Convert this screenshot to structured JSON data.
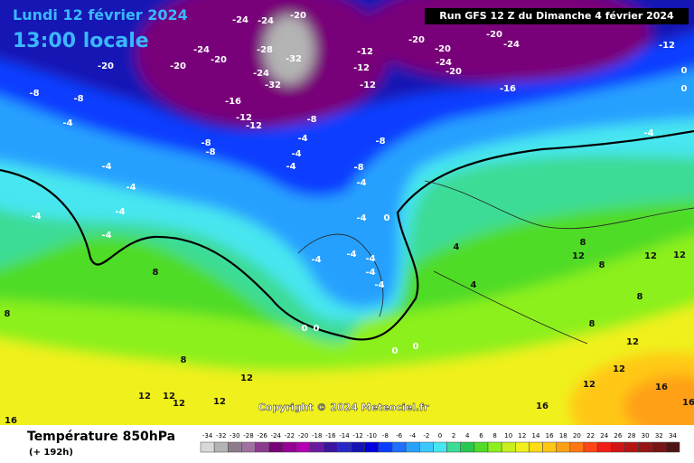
{
  "header": {
    "date": "Lundi 12 février 2024",
    "time": "13:00 locale",
    "run": "Run GFS 12 Z du Dimanche 4 février 2024"
  },
  "map": {
    "copyright": "Copyright © 2024 Meteociel.fr",
    "labels": [
      -24,
      -24,
      -20,
      -20,
      -20,
      -20,
      -24,
      -24,
      -20,
      -16,
      -20,
      -20,
      -20,
      -24,
      -28,
      -32,
      -24,
      -32,
      -12,
      -12,
      -12,
      -16,
      -12,
      -12,
      -8,
      -8,
      -8,
      -8,
      -8,
      -4,
      -4,
      -4,
      -4,
      -8,
      -8,
      -4,
      -4,
      -4,
      -4,
      -4,
      -4,
      8,
      -4,
      -4,
      -4,
      -4,
      -4,
      -4,
      0,
      4,
      4,
      8,
      12,
      8,
      12,
      12,
      8,
      8,
      12,
      12,
      12,
      16,
      16,
      16,
      12,
      12,
      12,
      12,
      12,
      16,
      8,
      8,
      0,
      0,
      0,
      0,
      -12,
      0,
      0,
      -4
    ]
  },
  "legend": {
    "title": "Température 850hPa",
    "lead": "(+ 192h)",
    "scale": [
      -34,
      -32,
      -30,
      -28,
      -26,
      -24,
      -22,
      -20,
      -18,
      -16,
      -14,
      -12,
      -10,
      -8,
      -6,
      -4,
      -2,
      0,
      2,
      4,
      6,
      8,
      10,
      12,
      14,
      16,
      18,
      20,
      22,
      24,
      26,
      28,
      30,
      32,
      34
    ],
    "colors": [
      "#d8d8d8",
      "#b4b4b4",
      "#8c7c8c",
      "#a070a0",
      "#8c3c8c",
      "#780078",
      "#960096",
      "#b400b4",
      "#6a1aa0",
      "#3c14a0",
      "#2828c8",
      "#1414b4",
      "#0000dc",
      "#0a3cff",
      "#1e6eff",
      "#28a0ff",
      "#3cc8ff",
      "#46e6f0",
      "#3cdc96",
      "#28c850",
      "#50dc28",
      "#8cf01e",
      "#c8f01e",
      "#f0f01e",
      "#ffdc14",
      "#ffc814",
      "#ffa014",
      "#ff7814",
      "#ff4614",
      "#f01e14",
      "#d21414",
      "#b41414",
      "#961414",
      "#781414",
      "#501414"
    ]
  }
}
